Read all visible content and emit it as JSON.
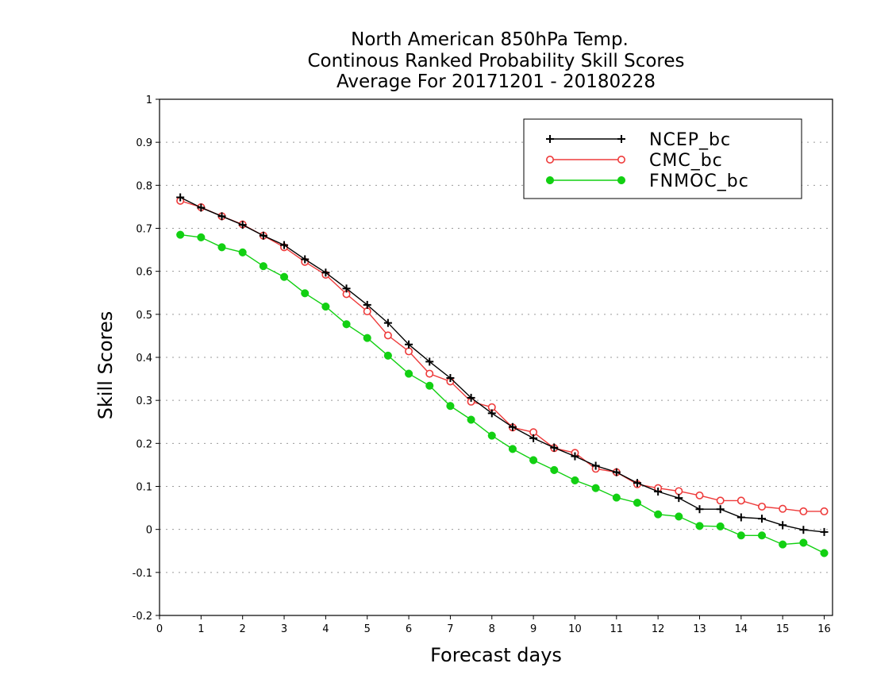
{
  "chart_data": {
    "type": "line",
    "title_lines": [
      "North American 850hPa Temp.",
      "Continous Ranked Probability Skill Scores",
      "Average For 20171201 - 20180228"
    ],
    "xlabel": "Forecast days",
    "ylabel": "Skill Scores",
    "xlim": [
      0,
      16.2
    ],
    "ylim": [
      -0.2,
      1
    ],
    "x_ticks": [
      0,
      1,
      2,
      3,
      4,
      5,
      6,
      7,
      8,
      9,
      10,
      11,
      12,
      13,
      14,
      15,
      16
    ],
    "y_ticks": [
      -0.2,
      -0.1,
      0,
      0.1,
      0.2,
      0.3,
      0.4,
      0.5,
      0.6,
      0.7,
      0.8,
      0.9,
      1
    ],
    "y_tick_labels": [
      "-0.2",
      "-0.1",
      "0",
      "0.1",
      "0.2",
      "0.3",
      "0.4",
      "0.5",
      "0.6",
      "0.7",
      "0.8",
      "0.9",
      "1"
    ],
    "grid": "horizontal dotted",
    "legend_position": "top-right",
    "x": [
      0.5,
      1,
      1.5,
      2,
      2.5,
      3,
      3.5,
      4,
      4.5,
      5,
      5.5,
      6,
      6.5,
      7,
      7.5,
      8,
      8.5,
      9,
      9.5,
      10,
      10.5,
      11,
      11.5,
      12,
      12.5,
      13,
      13.5,
      14,
      14.5,
      15,
      15.5,
      16
    ],
    "series": [
      {
        "name": "NCEP_bc",
        "color": "#000000",
        "marker": "plus",
        "values": [
          0.772,
          0.748,
          0.728,
          0.708,
          0.683,
          0.661,
          0.628,
          0.597,
          0.56,
          0.522,
          0.48,
          0.43,
          0.39,
          0.352,
          0.306,
          0.27,
          0.238,
          0.212,
          0.19,
          0.17,
          0.148,
          0.133,
          0.108,
          0.088,
          0.073,
          0.047,
          0.047,
          0.028,
          0.025,
          0.01,
          -0.001,
          -0.006
        ]
      },
      {
        "name": "CMC_bc",
        "color": "#ee3b3b",
        "marker": "open-circle",
        "values": [
          0.764,
          0.749,
          0.728,
          0.709,
          0.683,
          0.656,
          0.622,
          0.592,
          0.547,
          0.507,
          0.451,
          0.414,
          0.362,
          0.344,
          0.297,
          0.284,
          0.237,
          0.226,
          0.189,
          0.178,
          0.141,
          0.133,
          0.105,
          0.096,
          0.089,
          0.079,
          0.067,
          0.067,
          0.053,
          0.048,
          0.042,
          0.042
        ]
      },
      {
        "name": "FNMOC_bc",
        "color": "#12d012",
        "marker": "filled-circle",
        "values": [
          0.685,
          0.679,
          0.656,
          0.644,
          0.612,
          0.587,
          0.549,
          0.518,
          0.477,
          0.445,
          0.404,
          0.362,
          0.334,
          0.287,
          0.255,
          0.218,
          0.187,
          0.161,
          0.138,
          0.114,
          0.096,
          0.074,
          0.062,
          0.035,
          0.03,
          0.008,
          0.007,
          -0.014,
          -0.014,
          -0.035,
          -0.031,
          -0.055
        ]
      }
    ]
  }
}
